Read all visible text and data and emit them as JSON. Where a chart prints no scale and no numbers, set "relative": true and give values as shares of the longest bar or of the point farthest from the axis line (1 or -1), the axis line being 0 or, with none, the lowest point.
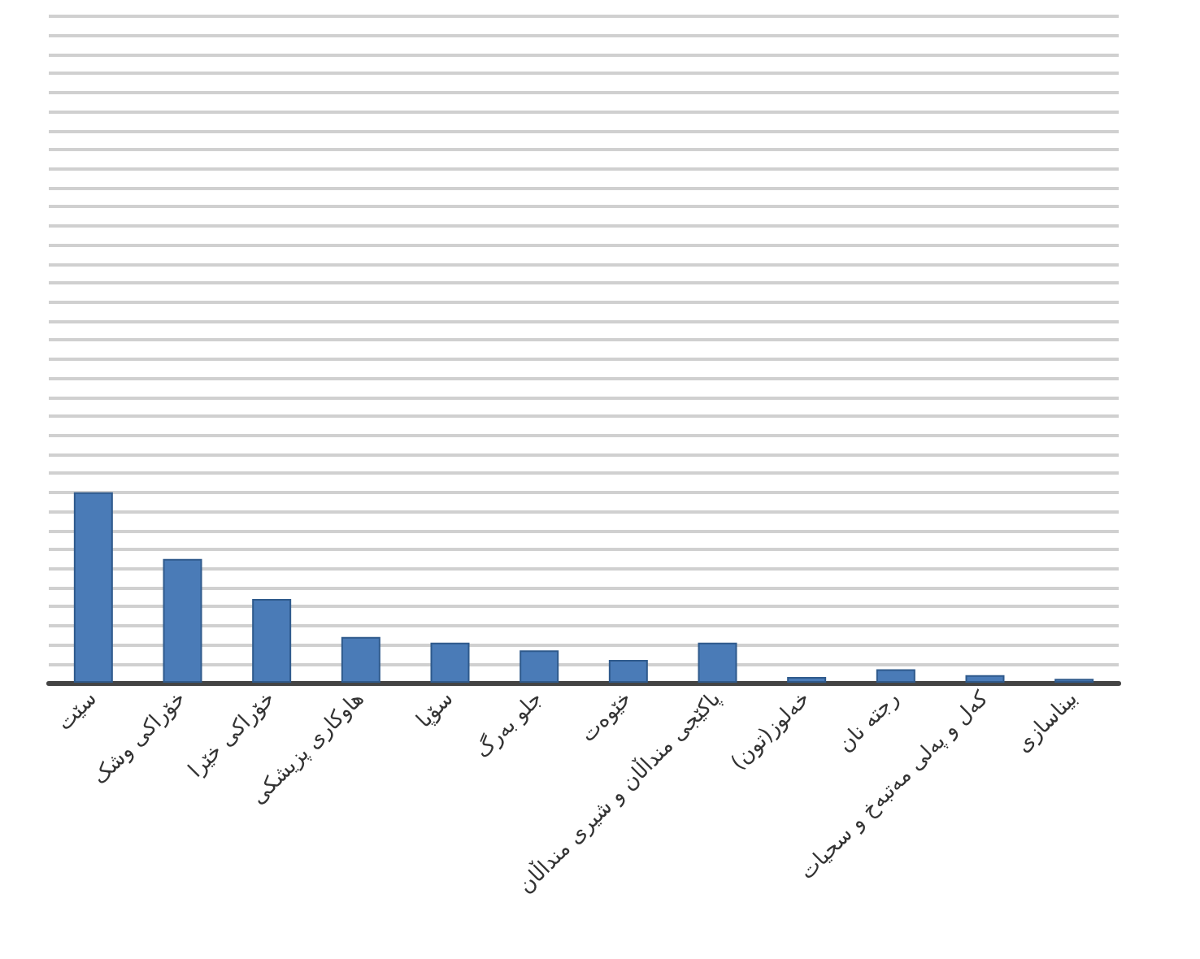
{
  "chart_data": {
    "type": "bar",
    "relative": true,
    "grid": "y",
    "color": "#4a7bb7",
    "categories": [
      "سێت",
      "خۆراکی وشک",
      "خۆراکی خێرا",
      "هاوکاری پزیشکی",
      "سۆپا",
      "جلو بەرگ",
      "خێوەت",
      "پاکێجی منداڵان و شیری منداڵان",
      "خەلوز(تون)",
      "رجتە نان",
      "کەل و پەلی مەتبەخ و سحیات",
      "بیناسازی"
    ],
    "values": [
      1,
      0.65,
      0.44,
      0.24,
      0.21,
      0.17,
      0.12,
      0.21,
      0.03,
      0.07,
      0.04,
      0.02
    ]
  }
}
